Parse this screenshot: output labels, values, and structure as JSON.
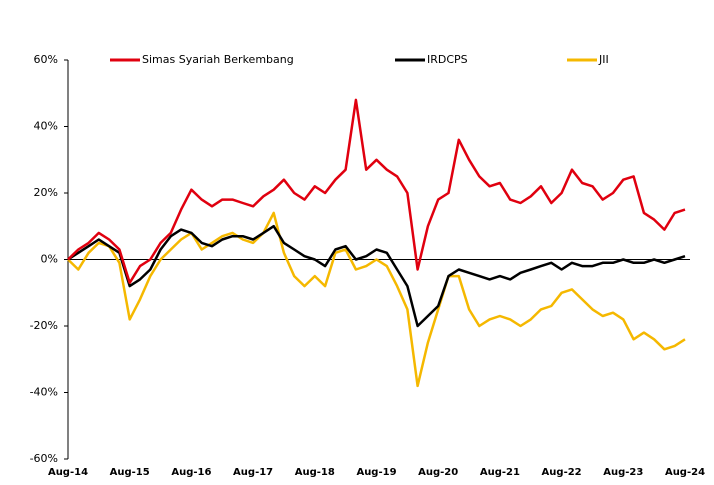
{
  "chart_data": {
    "type": "line",
    "categories": [
      "Aug-14",
      null,
      null,
      null,
      null,
      null,
      "Aug-15",
      null,
      null,
      null,
      null,
      null,
      "Aug-16",
      null,
      null,
      null,
      null,
      null,
      "Aug-17",
      null,
      null,
      null,
      null,
      null,
      "Aug-18",
      null,
      null,
      null,
      null,
      null,
      "Aug-19",
      null,
      null,
      null,
      null,
      null,
      "Aug-20",
      null,
      null,
      null,
      null,
      null,
      "Aug-21",
      null,
      null,
      null,
      null,
      null,
      "Aug-22",
      null,
      null,
      null,
      null,
      null,
      "Aug-23",
      null,
      null,
      null,
      null,
      null,
      "Aug-24"
    ],
    "series": [
      {
        "name": "Simas Syariah Berkembang",
        "color": "#e0000f",
        "values": [
          0,
          3,
          5,
          8,
          6,
          3,
          -7,
          -2,
          0,
          5,
          8,
          15,
          21,
          18,
          16,
          18,
          18,
          17,
          16,
          19,
          21,
          24,
          20,
          18,
          22,
          20,
          24,
          27,
          48,
          27,
          30,
          27,
          25,
          20,
          -3,
          10,
          18,
          20,
          36,
          30,
          25,
          22,
          23,
          18,
          17,
          19,
          22,
          17,
          20,
          27,
          23,
          22,
          18,
          20,
          24,
          25,
          14,
          12,
          9,
          14,
          15
        ]
      },
      {
        "name": "IRDCPS",
        "color": "#000000",
        "values": [
          0,
          2,
          4,
          6,
          4,
          2,
          -8,
          -6,
          -3,
          3,
          7,
          9,
          8,
          5,
          4,
          6,
          7,
          7,
          6,
          8,
          10,
          5,
          3,
          1,
          0,
          -2,
          3,
          4,
          0,
          1,
          3,
          2,
          -3,
          -8,
          -20,
          -17,
          -14,
          -5,
          -3,
          -4,
          -5,
          -6,
          -5,
          -6,
          -4,
          -3,
          -2,
          -1,
          -3,
          -1,
          -2,
          -2,
          -1,
          -1,
          0,
          -1,
          -1,
          0,
          -1,
          0,
          1
        ]
      },
      {
        "name": "JII",
        "color": "#f5b800",
        "values": [
          0,
          -3,
          2,
          5,
          4,
          -1,
          -18,
          -12,
          -5,
          0,
          3,
          6,
          8,
          3,
          5,
          7,
          8,
          6,
          5,
          8,
          14,
          2,
          -5,
          -8,
          -5,
          -8,
          2,
          3,
          -3,
          -2,
          0,
          -2,
          -8,
          -15,
          -38,
          -25,
          -15,
          -5,
          -5,
          -15,
          -20,
          -18,
          -17,
          -18,
          -20,
          -18,
          -15,
          -14,
          -10,
          -9,
          -12,
          -15,
          -17,
          -16,
          -18,
          -24,
          -22,
          -24,
          -27,
          -26,
          -24
        ]
      }
    ],
    "ylim": [
      -60,
      60
    ],
    "yticks": [
      {
        "value": -60,
        "label": "-60%"
      },
      {
        "value": -40,
        "label": "-40%"
      },
      {
        "value": -20,
        "label": "-20%"
      },
      {
        "value": 0,
        "label": "0%"
      },
      {
        "value": 20,
        "label": "20%"
      },
      {
        "value": 40,
        "label": "40%"
      },
      {
        "value": 60,
        "label": "60%"
      }
    ],
    "grid": false
  }
}
